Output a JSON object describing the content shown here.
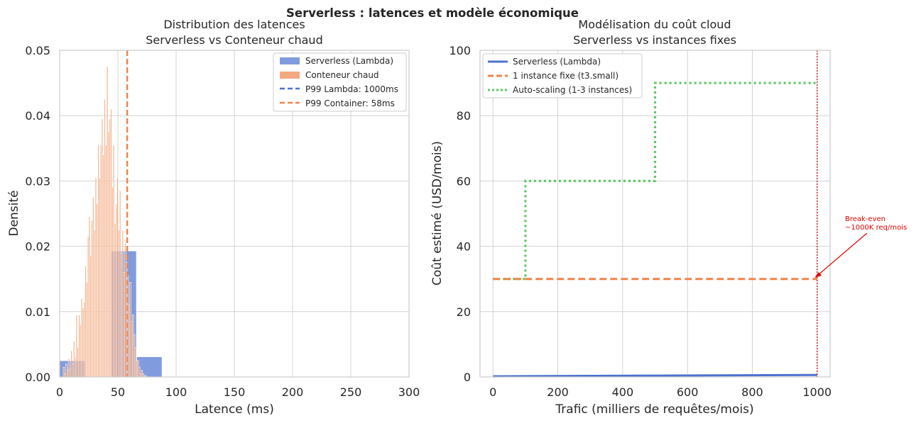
{
  "figure": {
    "suptitle": "Serverless : latences et modèle économique"
  },
  "colors": {
    "serverless": "#4c72d0",
    "container": "#ee854a",
    "autoscaling": "#5ec962",
    "breakeven": "#d62728",
    "annotation": "#e00000",
    "grid": "#d3d3d3"
  },
  "chart_data": [
    {
      "type": "histogram",
      "title_line1": "Distribution des latences",
      "title_line2": "Serverless vs Conteneur chaud",
      "xlabel": "Latence (ms)",
      "ylabel": "Densité",
      "xlim": [
        0,
        300
      ],
      "ylim": [
        0,
        0.05
      ],
      "xticks": [
        "0",
        "50",
        "100",
        "150",
        "200",
        "250",
        "300"
      ],
      "yticks": [
        "0.00",
        "0.01",
        "0.02",
        "0.03",
        "0.04",
        "0.05"
      ],
      "legend": [
        "Serverless (Lambda)",
        "Conteneur chaud",
        "P99 Lambda: 1000ms",
        "P99 Container: 58ms"
      ],
      "legend_position": "top-right",
      "p99_container_ms": 58,
      "p99_lambda_ms": 1000,
      "series": [
        {
          "name": "Serverless (Lambda)",
          "bins": [
            {
              "x0": 0,
              "x1": 22,
              "density": 0.0025
            },
            {
              "x0": 22,
              "x1": 44,
              "density": 0.0
            },
            {
              "x0": 44,
              "x1": 66,
              "density": 0.0193
            },
            {
              "x0": 66,
              "x1": 88,
              "density": 0.0031
            },
            {
              "x0": 88,
              "x1": 110,
              "density": 0.0001
            }
          ]
        },
        {
          "name": "Conteneur chaud",
          "start": 3,
          "bin_width": 1.1,
          "densities": [
            0.0015,
            0.0005,
            0.002,
            0.001,
            0.0028,
            0.0012,
            0.004,
            0.002,
            0.0055,
            0.003,
            0.0095,
            0.0045,
            0.0095,
            0.008,
            0.012,
            0.0105,
            0.0115,
            0.017,
            0.0145,
            0.0215,
            0.0245,
            0.0185,
            0.024,
            0.0275,
            0.0225,
            0.0305,
            0.0265,
            0.0355,
            0.0305,
            0.0355,
            0.0395,
            0.034,
            0.0425,
            0.0355,
            0.0475,
            0.0375,
            0.0395,
            0.041,
            0.029,
            0.0355,
            0.0235,
            0.0265,
            0.0305,
            0.0225,
            0.0285,
            0.019,
            0.0225,
            0.016,
            0.0205,
            0.0175,
            0.0155,
            0.011,
            0.0145,
            0.0085,
            0.0095,
            0.0065,
            0.0045,
            0.0025,
            0.0025,
            0.0015,
            0.0005,
            0.001,
            0.0005,
            0.0002,
            0.0002
          ]
        }
      ]
    },
    {
      "type": "line",
      "title_line1": "Modélisation du coût cloud",
      "title_line2": "Serverless vs instances fixes",
      "xlabel": "Trafic (milliers de requêtes/mois)",
      "ylabel": "Coût estimé (USD/mois)",
      "xlim": [
        -40,
        1040
      ],
      "ylim": [
        0,
        100
      ],
      "xticks": [
        "0",
        "200",
        "400",
        "600",
        "800",
        "1000"
      ],
      "yticks": [
        "0",
        "20",
        "40",
        "60",
        "80",
        "100"
      ],
      "legend": [
        "Serverless (Lambda)",
        "1 instance fixe (t3.small)",
        "Auto-scaling (1-3 instances)"
      ],
      "legend_position": "top-left",
      "series": [
        {
          "name": "Serverless (Lambda)",
          "x": [
            0,
            1000
          ],
          "y": [
            0.2,
            0.6
          ]
        },
        {
          "name": "1 instance fixe (t3.small)",
          "x": [
            0,
            1000
          ],
          "y": [
            30,
            30
          ]
        },
        {
          "name": "Auto-scaling (1-3 instances)",
          "x": [
            0,
            100,
            100,
            500,
            500,
            1000
          ],
          "y": [
            30,
            30,
            60,
            60,
            90,
            90
          ]
        }
      ],
      "breakeven_x": 1000,
      "annotation": {
        "line1": "Break-even",
        "line2": "~1000K req/mois",
        "target": [
          1000,
          30
        ]
      }
    }
  ]
}
